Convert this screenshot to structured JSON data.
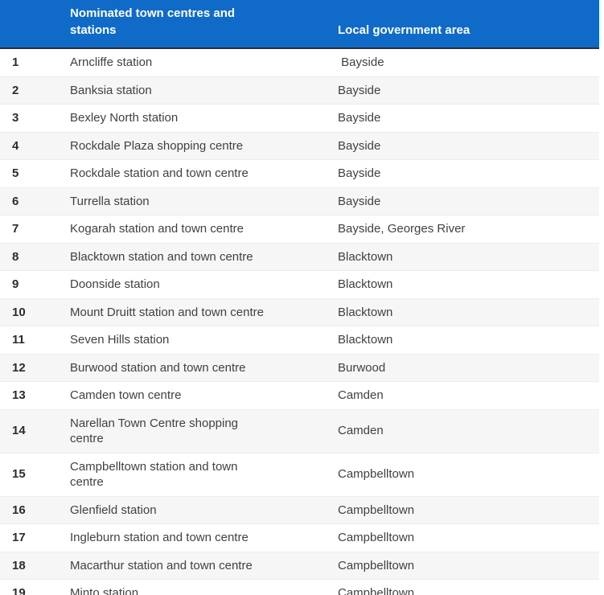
{
  "header": {
    "col_nominated": "Nominated town centres and stations",
    "col_lga": "Local government area"
  },
  "rows": [
    {
      "num": "1",
      "name": "Arncliffe station",
      "lga": " Bayside"
    },
    {
      "num": "2",
      "name": "Banksia station",
      "lga": "Bayside"
    },
    {
      "num": "3",
      "name": "Bexley North station",
      "lga": "Bayside"
    },
    {
      "num": "4",
      "name": "Rockdale Plaza shopping centre",
      "lga": "Bayside"
    },
    {
      "num": "5",
      "name": "Rockdale station and town centre",
      "lga": "Bayside"
    },
    {
      "num": "6",
      "name": "Turrella station",
      "lga": "Bayside"
    },
    {
      "num": "7",
      "name": "Kogarah station and town centre",
      "lga": "Bayside, Georges River"
    },
    {
      "num": "8",
      "name": "Blacktown station and town centre",
      "lga": "Blacktown"
    },
    {
      "num": "9",
      "name": "Doonside station",
      "lga": "Blacktown"
    },
    {
      "num": "10",
      "name": "Mount Druitt station and town centre",
      "lga": "Blacktown"
    },
    {
      "num": "11",
      "name": "Seven Hills station",
      "lga": "Blacktown"
    },
    {
      "num": "12",
      "name": "Burwood station and town centre",
      "lga": "Burwood"
    },
    {
      "num": "13",
      "name": "Camden town centre",
      "lga": "Camden"
    },
    {
      "num": "14",
      "name": "Narellan Town Centre shopping centre",
      "lga": "Camden"
    },
    {
      "num": "15",
      "name": "Campbelltown station and town centre",
      "lga": "Campbelltown"
    },
    {
      "num": "16",
      "name": "Glenfield station",
      "lga": "Campbelltown"
    },
    {
      "num": "17",
      "name": "Ingleburn station and town centre",
      "lga": "Campbelltown"
    },
    {
      "num": "18",
      "name": "Macarthur station and town centre",
      "lga": "Campbelltown"
    },
    {
      "num": "19",
      "name": "Minto station",
      "lga": "Campbelltown"
    }
  ],
  "colors": {
    "header_bg": "#106bc8",
    "header_text": "#ffffff",
    "header_border": "#26303c",
    "row_alt_bg": "#f6f6f6",
    "body_text": "#414141"
  }
}
